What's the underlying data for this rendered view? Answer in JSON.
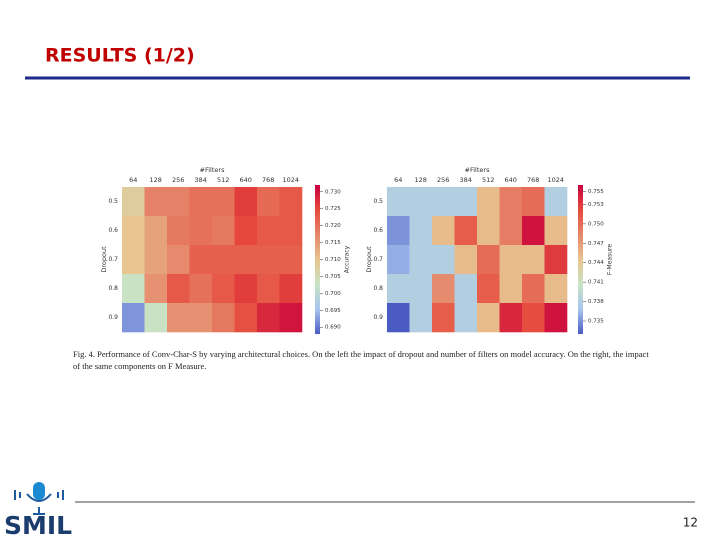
{
  "slide": {
    "title": "RESULTS (1/2)",
    "caption": "Fig. 4.  Performance of Conv-Char-S by varying architectural choices. On the left the impact of dropout and number of filters on model accuracy. On the right, the impact of the same components on F Measure.",
    "page_number": "12",
    "logo": "SMIL"
  },
  "chart_data": [
    {
      "type": "heatmap",
      "x_label": "#Filters",
      "y_label": "Dropout",
      "colorbar_label": "Accuracy",
      "categories": [
        64,
        128,
        256,
        384,
        512,
        640,
        768,
        1024
      ],
      "rows": [
        0.5,
        0.6,
        0.7,
        0.8,
        0.9
      ],
      "colorscale": [
        "#4a5bc4",
        "#a9c6ee",
        "#c8e3c6",
        "#e8c48f",
        "#e5876b",
        "#e64a3c",
        "#c8003f"
      ],
      "zlim": [
        0.688,
        0.732
      ],
      "zticks": [
        {
          "value": 0.69,
          "label": "0.690"
        },
        {
          "value": 0.695,
          "label": "0.695"
        },
        {
          "value": 0.7,
          "label": "0.700"
        },
        {
          "value": 0.705,
          "label": "0.705"
        },
        {
          "value": 0.71,
          "label": "0.710"
        },
        {
          "value": 0.715,
          "label": "0.715"
        },
        {
          "value": 0.72,
          "label": "0.720"
        },
        {
          "value": 0.725,
          "label": "0.725"
        },
        {
          "value": 0.73,
          "label": "0.730"
        }
      ],
      "values": [
        [
          0.708,
          0.718,
          0.718,
          0.72,
          0.72,
          0.726,
          0.721,
          0.723
        ],
        [
          0.71,
          0.714,
          0.719,
          0.72,
          0.719,
          0.725,
          0.723,
          0.723
        ],
        [
          0.71,
          0.714,
          0.717,
          0.722,
          0.722,
          0.722,
          0.722,
          0.722
        ],
        [
          0.703,
          0.716,
          0.723,
          0.72,
          0.723,
          0.726,
          0.723,
          0.726
        ],
        [
          0.692,
          0.703,
          0.716,
          0.716,
          0.719,
          0.724,
          0.728,
          0.73
        ]
      ]
    },
    {
      "type": "heatmap",
      "x_label": "#Filters",
      "y_label": "Dropout",
      "colorbar_label": "F-Measure",
      "categories": [
        64,
        128,
        256,
        384,
        512,
        640,
        768,
        1024
      ],
      "rows": [
        0.5,
        0.6,
        0.7,
        0.8,
        0.9
      ],
      "colorscale": [
        "#4a5bc4",
        "#a9c6ee",
        "#c8e3c6",
        "#e8c48f",
        "#e5876b",
        "#e64a3c",
        "#c8003f"
      ],
      "zlim": [
        0.733,
        0.756
      ],
      "zticks": [
        {
          "value": 0.735,
          "label": "0.735"
        },
        {
          "value": 0.738,
          "label": "0.738"
        },
        {
          "value": 0.741,
          "label": "0.741"
        },
        {
          "value": 0.744,
          "label": "0.744"
        },
        {
          "value": 0.747,
          "label": "0.747"
        },
        {
          "value": 0.75,
          "label": "0.750"
        },
        {
          "value": 0.753,
          "label": "0.753"
        },
        {
          "value": 0.755,
          "label": "0.755"
        }
      ],
      "values": [
        [
          0.738,
          0.738,
          0.738,
          0.738,
          0.745,
          0.749,
          0.75,
          0.738
        ],
        [
          0.735,
          0.738,
          0.745,
          0.751,
          0.745,
          0.749,
          0.755,
          0.745
        ],
        [
          0.736,
          0.738,
          0.738,
          0.745,
          0.75,
          0.745,
          0.745,
          0.753
        ],
        [
          0.738,
          0.738,
          0.748,
          0.738,
          0.751,
          0.745,
          0.75,
          0.745
        ],
        [
          0.733,
          0.738,
          0.751,
          0.738,
          0.745,
          0.754,
          0.752,
          0.755
        ]
      ]
    }
  ]
}
